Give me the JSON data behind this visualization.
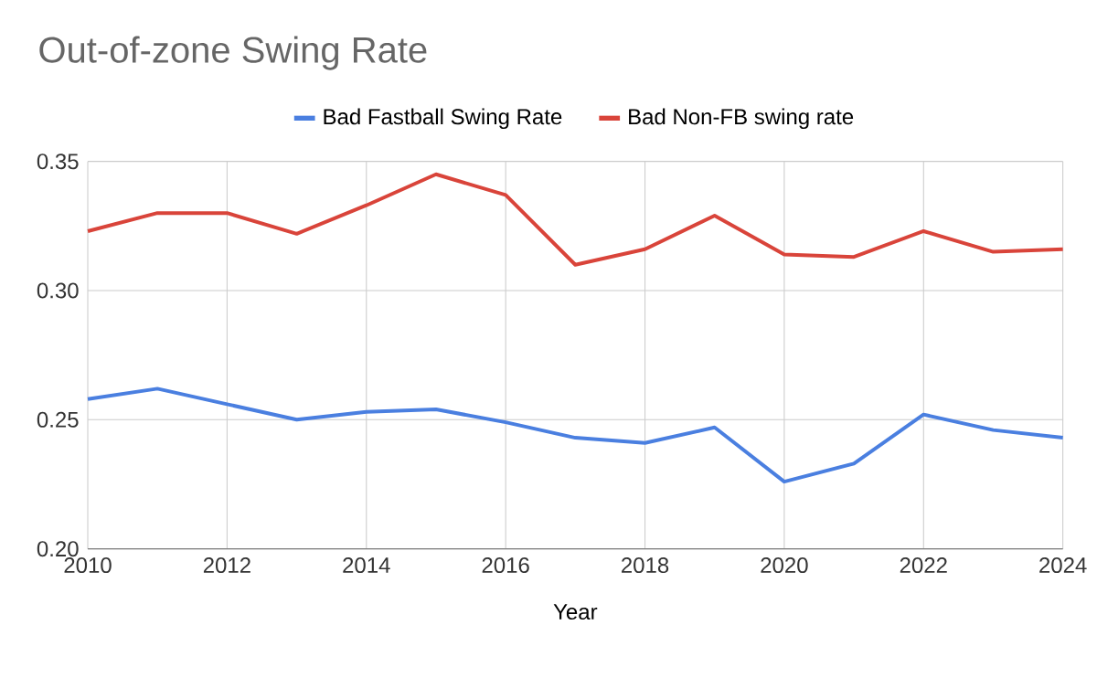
{
  "chart_data": {
    "type": "line",
    "title": "Out-of-zone Swing Rate",
    "xlabel": "Year",
    "x": [
      2010,
      2011,
      2012,
      2013,
      2014,
      2015,
      2016,
      2017,
      2018,
      2019,
      2020,
      2021,
      2022,
      2023,
      2024
    ],
    "series": [
      {
        "name": "Bad Fastball Swing Rate",
        "color": "#4a7fe0",
        "values": [
          0.258,
          0.262,
          0.256,
          0.25,
          0.253,
          0.254,
          0.249,
          0.243,
          0.241,
          0.247,
          0.226,
          0.233,
          0.252,
          0.246,
          0.243
        ]
      },
      {
        "name": "Bad Non-FB swing rate",
        "color": "#d9443a",
        "values": [
          0.323,
          0.33,
          0.33,
          0.322,
          0.333,
          0.345,
          0.337,
          0.31,
          0.316,
          0.329,
          0.314,
          0.313,
          0.323,
          0.315,
          0.316
        ]
      }
    ],
    "xlim": [
      2010,
      2024
    ],
    "xticks": [
      2010,
      2012,
      2014,
      2016,
      2018,
      2020,
      2022,
      2024
    ],
    "ylim": [
      0.2,
      0.35
    ],
    "yticks": [
      {
        "value": 0.2,
        "label": "0.20"
      },
      {
        "value": 0.25,
        "label": "0.25"
      },
      {
        "value": 0.3,
        "label": "0.30"
      },
      {
        "value": 0.35,
        "label": "0.35"
      }
    ],
    "grid": true,
    "legend": "top",
    "marker": "none",
    "line_style": "solid"
  }
}
